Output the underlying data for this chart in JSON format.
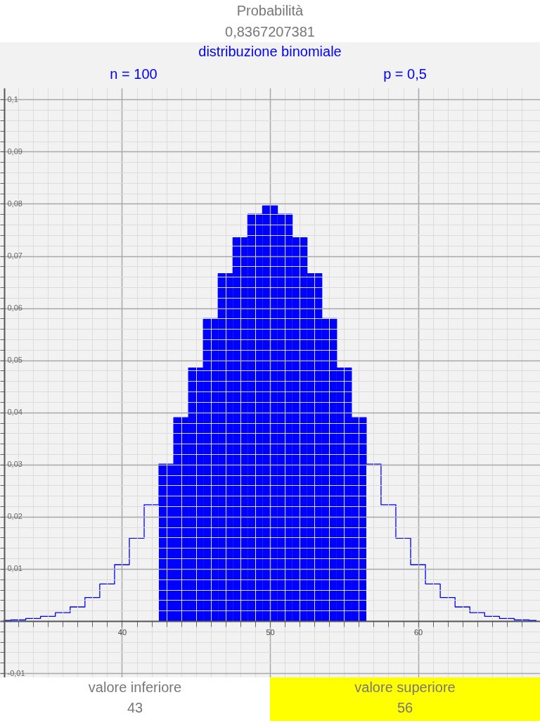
{
  "chart_data": {
    "type": "step",
    "title": "Probabilità",
    "subtitle": "0,8367207381",
    "annotations": [
      "distribuzione binomiale",
      "n = 100",
      "p = 0,5",
      "valore inferiore",
      "43",
      "valore superiore",
      "56"
    ],
    "xlim": [
      32,
      68
    ],
    "ylim": [
      -0.0108,
      0.1022
    ],
    "xticks": [
      {
        "value": 33,
        "label": null
      },
      {
        "value": 34,
        "label": null
      },
      {
        "value": 35,
        "label": null
      },
      {
        "value": 36,
        "label": null
      },
      {
        "value": 37,
        "label": null
      },
      {
        "value": 38,
        "label": null
      },
      {
        "value": 39,
        "label": null
      },
      40,
      {
        "value": 41,
        "label": null
      },
      {
        "value": 42,
        "label": null
      },
      {
        "value": 43,
        "label": null
      },
      {
        "value": 44,
        "label": null
      },
      {
        "value": 45,
        "label": null
      },
      {
        "value": 46,
        "label": null
      },
      {
        "value": 47,
        "label": null
      },
      {
        "value": 48,
        "label": null
      },
      {
        "value": 49,
        "label": null
      },
      50,
      {
        "value": 51,
        "label": null
      },
      {
        "value": 52,
        "label": null
      },
      {
        "value": 53,
        "label": null
      },
      {
        "value": 54,
        "label": null
      },
      {
        "value": 55,
        "label": null
      },
      {
        "value": 56,
        "label": null
      },
      {
        "value": 57,
        "label": null
      },
      {
        "value": 58,
        "label": null
      },
      {
        "value": 59,
        "label": null
      },
      60,
      {
        "value": 61,
        "label": null
      },
      {
        "value": 62,
        "label": null
      },
      {
        "value": 63,
        "label": null
      },
      {
        "value": 64,
        "label": null
      },
      {
        "value": 65,
        "label": null
      },
      {
        "value": 66,
        "label": null
      },
      {
        "value": 67,
        "label": null
      }
    ],
    "yticks": [
      {
        "value": -0.01,
        "label": "-0,01"
      },
      {
        "value": -0.008,
        "label": null
      },
      {
        "value": -0.006,
        "label": null
      },
      {
        "value": -0.004,
        "label": null
      },
      {
        "value": -0.002,
        "label": null
      },
      {
        "value": 0,
        "label": null
      },
      {
        "value": 0.002,
        "label": null
      },
      {
        "value": 0.004,
        "label": null
      },
      {
        "value": 0.006,
        "label": null
      },
      {
        "value": 0.008,
        "label": null
      },
      {
        "value": 0.01,
        "label": "0,01"
      },
      {
        "value": 0.012,
        "label": null
      },
      {
        "value": 0.014,
        "label": null
      },
      {
        "value": 0.016,
        "label": null
      },
      {
        "value": 0.018,
        "label": null
      },
      {
        "value": 0.02,
        "label": "0,02"
      },
      {
        "value": 0.022,
        "label": null
      },
      {
        "value": 0.024,
        "label": null
      },
      {
        "value": 0.026,
        "label": null
      },
      {
        "value": 0.028,
        "label": null
      },
      {
        "value": 0.03,
        "label": "0,03"
      },
      {
        "value": 0.032,
        "label": null
      },
      {
        "value": 0.034,
        "label": null
      },
      {
        "value": 0.036,
        "label": null
      },
      {
        "value": 0.038,
        "label": null
      },
      {
        "value": 0.04,
        "label": "0,04"
      },
      {
        "value": 0.042,
        "label": null
      },
      {
        "value": 0.044,
        "label": null
      },
      {
        "value": 0.046,
        "label": null
      },
      {
        "value": 0.048,
        "label": null
      },
      {
        "value": 0.05,
        "label": "0,05"
      },
      {
        "value": 0.052,
        "label": null
      },
      {
        "value": 0.054,
        "label": null
      },
      {
        "value": 0.056,
        "label": null
      },
      {
        "value": 0.058,
        "label": null
      },
      {
        "value": 0.06,
        "label": "0,06"
      },
      {
        "value": 0.062,
        "label": null
      },
      {
        "value": 0.064,
        "label": null
      },
      {
        "value": 0.066,
        "label": null
      },
      {
        "value": 0.068,
        "label": null
      },
      {
        "value": 0.07,
        "label": "0,07"
      },
      {
        "value": 0.072,
        "label": null
      },
      {
        "value": 0.074,
        "label": null
      },
      {
        "value": 0.076,
        "label": null
      },
      {
        "value": 0.078,
        "label": null
      },
      {
        "value": 0.08,
        "label": "0,08"
      },
      {
        "value": 0.082,
        "label": null
      },
      {
        "value": 0.084,
        "label": null
      },
      {
        "value": 0.086,
        "label": null
      },
      {
        "value": 0.088,
        "label": null
      },
      {
        "value": 0.09,
        "label": "0,09"
      },
      {
        "value": 0.092,
        "label": null
      },
      {
        "value": 0.094,
        "label": null
      },
      {
        "value": 0.096,
        "label": null
      },
      {
        "value": 0.098,
        "label": null
      },
      {
        "value": 0.1,
        "label": "0,1"
      }
    ],
    "grid": true,
    "series": [
      {
        "color": "#0000ff",
        "x": [
          32,
          33,
          34,
          35,
          36,
          37,
          38,
          39,
          40,
          41,
          42,
          43,
          44,
          45,
          46,
          47,
          48,
          49,
          50,
          51,
          52,
          53,
          54,
          55,
          56,
          57,
          58,
          59,
          60,
          61,
          62,
          63,
          64,
          65,
          66,
          67,
          68
        ],
        "values": [
          0.0001,
          0.0002,
          0.0005,
          0.0009,
          0.0016,
          0.0027,
          0.0045,
          0.0071,
          0.0108,
          0.0159,
          0.0223,
          0.0301,
          0.039,
          0.0485,
          0.058,
          0.0666,
          0.0735,
          0.078,
          0.0796,
          0.078,
          0.0735,
          0.0666,
          0.058,
          0.0485,
          0.039,
          0.0301,
          0.0223,
          0.0159,
          0.0108,
          0.0071,
          0.0045,
          0.0027,
          0.0016,
          0.0009,
          0.0005,
          0.0002,
          0.0001
        ]
      },
      {
        "type": "bar",
        "color": "#0000ff",
        "x": [
          43,
          44,
          45,
          46,
          47,
          48,
          49,
          50,
          51,
          52,
          53,
          54,
          55,
          56
        ],
        "values": [
          0.0301,
          0.039,
          0.0485,
          0.058,
          0.0666,
          0.0735,
          0.078,
          0.0796,
          0.078,
          0.0735,
          0.0666,
          0.058,
          0.0485,
          0.039
        ]
      }
    ]
  }
}
